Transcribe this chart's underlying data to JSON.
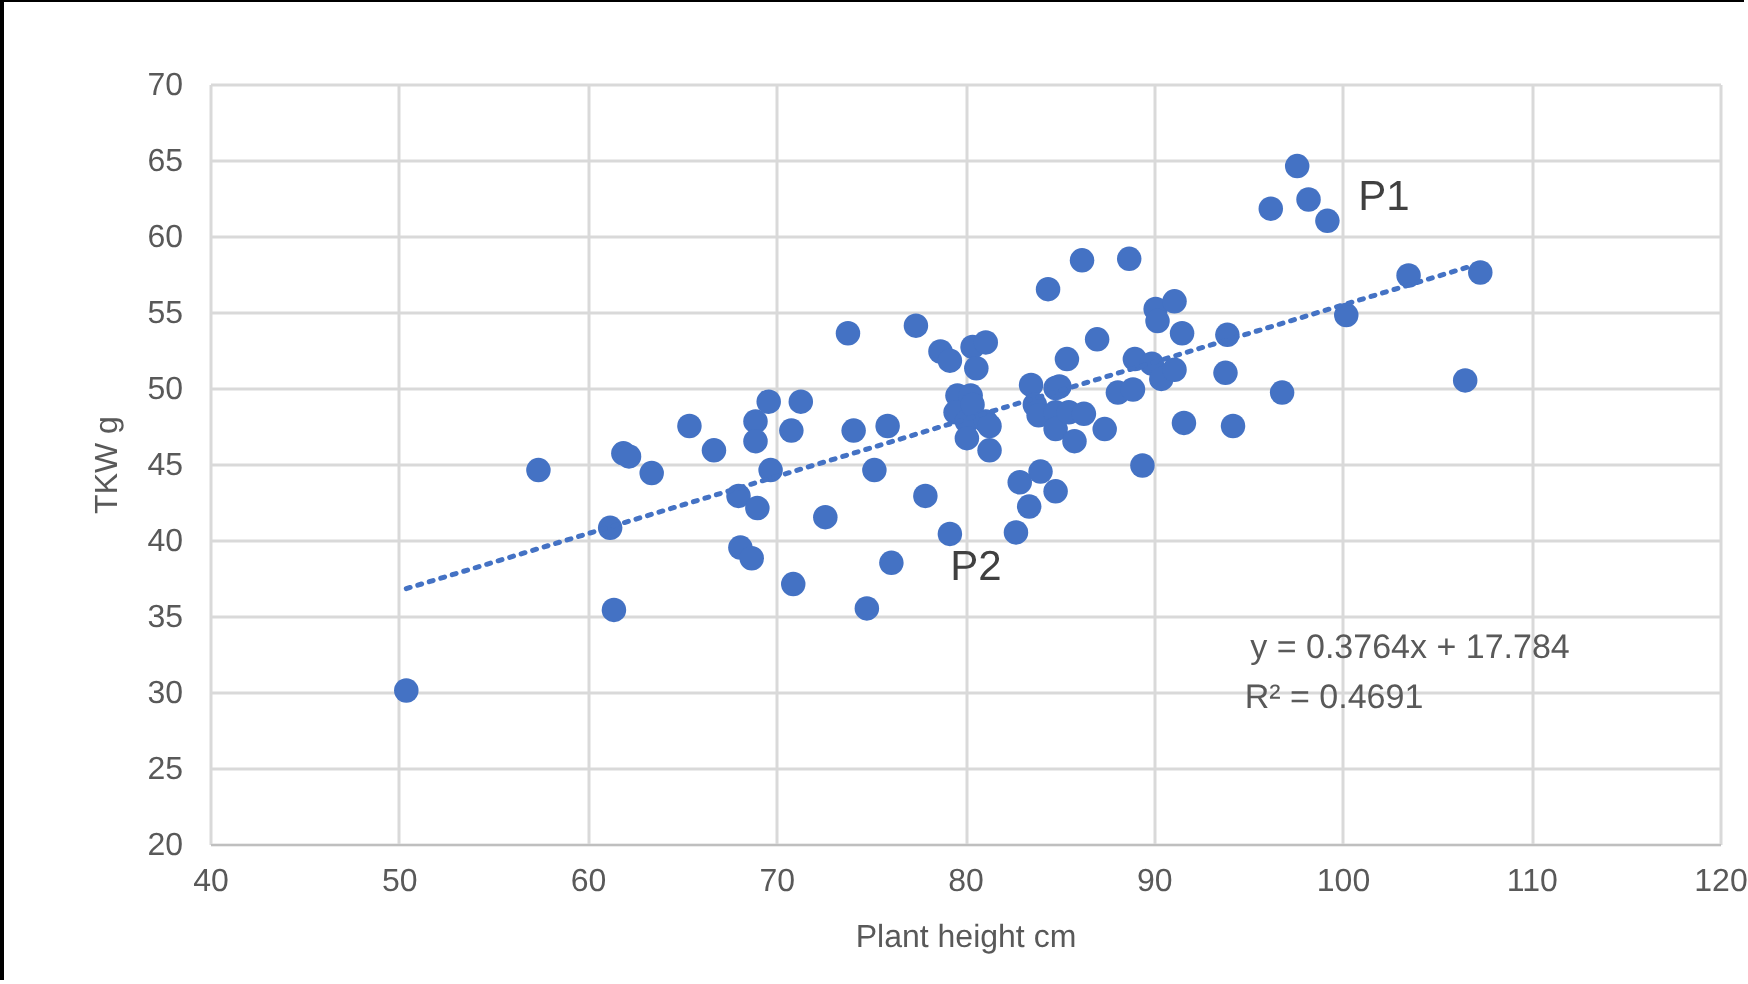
{
  "chart_data": {
    "type": "scatter",
    "xlabel": "Plant height cm",
    "ylabel": "TKW g",
    "xlim": [
      40,
      120
    ],
    "xticks": [
      40,
      50,
      60,
      70,
      80,
      90,
      100,
      110,
      120
    ],
    "ylim": [
      20,
      70
    ],
    "yticks": [
      20,
      25,
      30,
      35,
      40,
      45,
      50,
      55,
      60,
      65,
      70
    ],
    "grid": true,
    "annotations": [
      "P1",
      "P2",
      "y = 0.3764x + 17.784",
      "R² = 0.4691"
    ],
    "series": [
      {
        "marker": "circle",
        "color": "#4472c4",
        "x": [
          50.4,
          57.4,
          61.2,
          61.4,
          61.9,
          62.2,
          63.4,
          65.4,
          66.7,
          68.0,
          68.1,
          68.7,
          68.9,
          68.9,
          69.0,
          69.6,
          69.7,
          70.8,
          71.3,
          70.9,
          72.6,
          73.8,
          74.1,
          74.8,
          75.2,
          75.9,
          76.1,
          77.4,
          77.9,
          78.7,
          79.2,
          79.2,
          79.6,
          79.5,
          80.1,
          80.1,
          80.3,
          80.4,
          80.4,
          80.6,
          81.1,
          81.1,
          81.3,
          81.3,
          82.7,
          82.9,
          83.4,
          83.5,
          83.7,
          83.9,
          84.0,
          84.4,
          84.8,
          84.8,
          84.8,
          84.8,
          85.0,
          85.4,
          85.5,
          85.8,
          86.2,
          86.3,
          87.0,
          87.4,
          88.1,
          89.0,
          88.7,
          88.9,
          89.4,
          89.9,
          90.1,
          90.2,
          90.4,
          91.1,
          91.1,
          91.5,
          91.6,
          93.8,
          93.9,
          94.2,
          96.2,
          96.8,
          97.6,
          98.2,
          99.2,
          100.2,
          103.5,
          106.5,
          107.3
        ],
        "values": [
          30.1,
          44.6,
          40.8,
          35.4,
          45.7,
          45.5,
          44.4,
          47.5,
          45.9,
          42.9,
          39.5,
          38.8,
          47.8,
          46.5,
          42.1,
          49.1,
          44.6,
          47.2,
          49.1,
          37.1,
          41.5,
          53.6,
          47.2,
          35.5,
          44.6,
          47.5,
          38.5,
          54.1,
          42.9,
          52.4,
          51.8,
          40.4,
          49.5,
          48.4,
          47.8,
          46.7,
          49.5,
          48.9,
          52.7,
          51.3,
          53.0,
          47.8,
          47.5,
          45.9,
          40.5,
          43.8,
          42.2,
          50.2,
          48.9,
          48.2,
          44.5,
          56.5,
          50.0,
          48.4,
          47.3,
          43.2,
          50.1,
          51.9,
          48.4,
          46.5,
          58.4,
          48.3,
          53.2,
          47.3,
          49.7,
          51.9,
          58.5,
          49.9,
          44.9,
          51.6,
          55.2,
          54.4,
          50.6,
          55.7,
          51.2,
          53.6,
          47.7,
          51.0,
          53.5,
          47.5,
          61.8,
          49.7,
          64.6,
          62.4,
          61.0,
          54.8,
          57.4,
          50.5,
          57.6
        ]
      },
      {
        "type": "line",
        "color": "#4472c4",
        "line_style": "dotted",
        "x": [
          50.4,
          107.3
        ],
        "values": [
          36.8,
          58.2
        ]
      }
    ]
  }
}
